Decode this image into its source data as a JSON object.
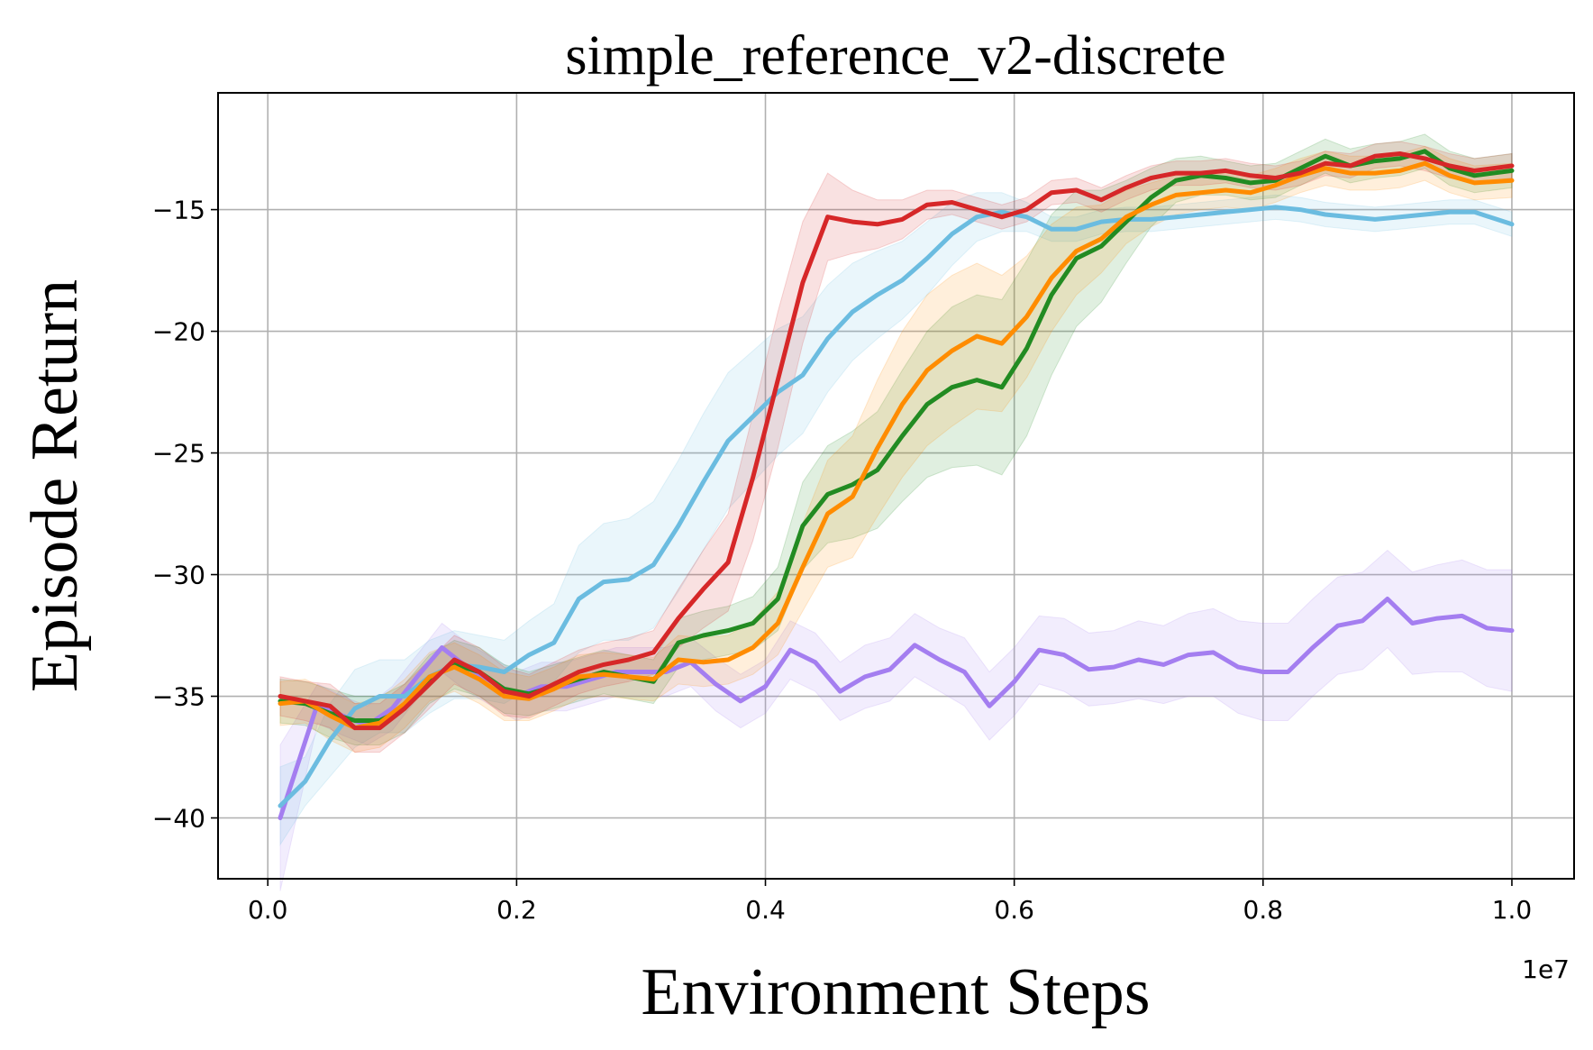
{
  "chart_data": {
    "type": "line",
    "title": "simple_reference_v2-discrete",
    "xlabel": "Environment Steps",
    "ylabel": "Episode Return",
    "x_offset_label": "1e7",
    "xlim": [
      -0.04,
      1.05
    ],
    "ylim": [
      -42.5,
      -10.2
    ],
    "xticks": [
      0.0,
      0.2,
      0.4,
      0.6,
      0.8,
      1.0
    ],
    "xtick_labels": [
      "0.0",
      "0.2",
      "0.4",
      "0.6",
      "0.8",
      "1.0"
    ],
    "yticks": [
      -40,
      -35,
      -30,
      -25,
      -20,
      -15
    ],
    "ytick_labels": [
      "−40",
      "−35",
      "−30",
      "−25",
      "−20",
      "−15"
    ],
    "grid": true,
    "series": [
      {
        "name": "purple",
        "color": "#a47ef0",
        "x": [
          0.01,
          0.04,
          0.06,
          0.08,
          0.1,
          0.12,
          0.14,
          0.16,
          0.18,
          0.2,
          0.22,
          0.24,
          0.26,
          0.28,
          0.3,
          0.32,
          0.34,
          0.36,
          0.38,
          0.4,
          0.42,
          0.44,
          0.46,
          0.48,
          0.5,
          0.52,
          0.54,
          0.56,
          0.58,
          0.6,
          0.62,
          0.64,
          0.66,
          0.68,
          0.7,
          0.72,
          0.74,
          0.76,
          0.78,
          0.8,
          0.82,
          0.84,
          0.86,
          0.88,
          0.9,
          0.92,
          0.94,
          0.96,
          0.98,
          1.0
        ],
        "values": [
          -40,
          -35.3,
          -35.8,
          -36.2,
          -35.5,
          -34.2,
          -33,
          -33.8,
          -34.4,
          -35,
          -34.6,
          -34.6,
          -34.3,
          -34,
          -34,
          -34,
          -33.6,
          -34.5,
          -35.2,
          -34.6,
          -33.1,
          -33.6,
          -34.8,
          -34.2,
          -33.9,
          -32.9,
          -33.5,
          -34,
          -35.4,
          -34.4,
          -33.1,
          -33.3,
          -33.9,
          -33.8,
          -33.5,
          -33.7,
          -33.3,
          -33.2,
          -33.8,
          -34,
          -34,
          -33,
          -32.1,
          -31.9,
          -31,
          -32,
          -31.8,
          -31.7,
          -32.2,
          -32.3
        ],
        "band": [
          3.0,
          0.8,
          0.8,
          0.8,
          0.9,
          0.9,
          1.0,
          1.0,
          1.0,
          1.0,
          1.0,
          1.0,
          1.0,
          1.0,
          1.0,
          1.0,
          1.0,
          1.1,
          1.1,
          1.1,
          1.2,
          1.2,
          1.2,
          1.3,
          1.3,
          1.3,
          1.3,
          1.4,
          1.4,
          1.4,
          1.4,
          1.5,
          1.5,
          1.5,
          1.6,
          1.6,
          1.7,
          1.8,
          1.9,
          2.0,
          2.0,
          2.0,
          2.0,
          2.0,
          2.0,
          2.1,
          2.2,
          2.3,
          2.4,
          2.5
        ]
      },
      {
        "name": "sky",
        "color": "#6bbce0",
        "x": [
          0.01,
          0.03,
          0.05,
          0.07,
          0.09,
          0.11,
          0.13,
          0.15,
          0.17,
          0.19,
          0.21,
          0.23,
          0.25,
          0.27,
          0.29,
          0.31,
          0.33,
          0.35,
          0.37,
          0.39,
          0.41,
          0.43,
          0.45,
          0.47,
          0.49,
          0.51,
          0.53,
          0.55,
          0.57,
          0.59,
          0.61,
          0.63,
          0.65,
          0.67,
          0.69,
          0.71,
          0.73,
          0.75,
          0.77,
          0.79,
          0.81,
          0.83,
          0.85,
          0.87,
          0.89,
          0.91,
          0.93,
          0.95,
          0.97,
          1.0
        ],
        "values": [
          -39.5,
          -38.5,
          -36.8,
          -35.5,
          -35,
          -35,
          -34.2,
          -33.7,
          -33.8,
          -34,
          -33.3,
          -32.8,
          -31,
          -30.3,
          -30.2,
          -29.6,
          -28,
          -26.2,
          -24.5,
          -23.5,
          -22.5,
          -21.8,
          -20.3,
          -19.2,
          -18.5,
          -17.9,
          -17,
          -16,
          -15.3,
          -15.1,
          -15.3,
          -15.8,
          -15.8,
          -15.5,
          -15.4,
          -15.4,
          -15.3,
          -15.2,
          -15.1,
          -15,
          -14.9,
          -15,
          -15.2,
          -15.3,
          -15.4,
          -15.3,
          -15.2,
          -15.1,
          -15.1,
          -15.6
        ],
        "band": [
          1.6,
          1.0,
          1.5,
          1.6,
          1.5,
          1.5,
          1.5,
          1.4,
          1.3,
          1.3,
          1.4,
          1.6,
          2.2,
          2.4,
          2.5,
          2.6,
          2.7,
          2.8,
          2.8,
          2.7,
          2.6,
          2.4,
          2.2,
          2.0,
          1.8,
          1.6,
          1.5,
          1.3,
          1.0,
          0.8,
          0.6,
          0.5,
          0.5,
          0.5,
          0.5,
          0.5,
          0.5,
          0.5,
          0.5,
          0.5,
          0.5,
          0.5,
          0.5,
          0.5,
          0.5,
          0.5,
          0.5,
          0.5,
          0.5,
          0.5
        ]
      },
      {
        "name": "green",
        "color": "#228b22",
        "x": [
          0.01,
          0.03,
          0.05,
          0.07,
          0.09,
          0.11,
          0.13,
          0.15,
          0.17,
          0.19,
          0.21,
          0.23,
          0.25,
          0.27,
          0.29,
          0.31,
          0.33,
          0.35,
          0.37,
          0.39,
          0.41,
          0.43,
          0.45,
          0.47,
          0.49,
          0.51,
          0.53,
          0.55,
          0.57,
          0.59,
          0.61,
          0.63,
          0.65,
          0.67,
          0.69,
          0.71,
          0.73,
          0.75,
          0.77,
          0.79,
          0.81,
          0.83,
          0.85,
          0.87,
          0.89,
          0.91,
          0.93,
          0.95,
          0.97,
          1.0
        ],
        "values": [
          -35.2,
          -35.3,
          -35.7,
          -36,
          -36,
          -35.5,
          -34.3,
          -33.7,
          -34,
          -34.7,
          -34.9,
          -34.6,
          -34.3,
          -34,
          -34.2,
          -34.4,
          -32.8,
          -32.5,
          -32.3,
          -32,
          -31,
          -28,
          -26.7,
          -26.3,
          -25.7,
          -24.3,
          -23,
          -22.3,
          -22,
          -22.3,
          -20.7,
          -18.5,
          -17,
          -16.5,
          -15.5,
          -14.5,
          -13.8,
          -13.6,
          -13.7,
          -13.9,
          -13.8,
          -13.3,
          -12.8,
          -13.2,
          -13,
          -12.9,
          -12.6,
          -13.3,
          -13.6,
          -13.4
        ],
        "band": [
          0.9,
          0.9,
          1.0,
          1.0,
          1.0,
          1.0,
          1.0,
          1.0,
          1.0,
          1.0,
          0.9,
          0.9,
          0.9,
          0.9,
          0.9,
          0.9,
          1.0,
          1.0,
          1.0,
          1.1,
          1.3,
          1.8,
          2.0,
          2.2,
          2.4,
          2.7,
          3.0,
          3.3,
          3.5,
          3.6,
          3.6,
          3.3,
          2.8,
          2.3,
          1.7,
          1.2,
          0.9,
          0.8,
          0.7,
          0.7,
          0.7,
          0.7,
          0.7,
          0.7,
          0.7,
          0.7,
          0.7,
          0.7,
          0.7,
          0.7
        ]
      },
      {
        "name": "orange",
        "color": "#ff8c00",
        "x": [
          0.01,
          0.03,
          0.05,
          0.07,
          0.09,
          0.11,
          0.13,
          0.15,
          0.17,
          0.19,
          0.21,
          0.23,
          0.25,
          0.27,
          0.29,
          0.31,
          0.33,
          0.35,
          0.37,
          0.39,
          0.41,
          0.43,
          0.45,
          0.47,
          0.49,
          0.51,
          0.53,
          0.55,
          0.57,
          0.59,
          0.61,
          0.63,
          0.65,
          0.67,
          0.69,
          0.71,
          0.73,
          0.75,
          0.77,
          0.79,
          0.81,
          0.83,
          0.85,
          0.87,
          0.89,
          0.91,
          0.93,
          0.95,
          0.97,
          1.0
        ],
        "values": [
          -35.3,
          -35.2,
          -35.8,
          -36.3,
          -36.1,
          -35.3,
          -34.2,
          -33.8,
          -34.3,
          -35,
          -35.1,
          -34.7,
          -34.2,
          -34.1,
          -34.2,
          -34.3,
          -33.5,
          -33.6,
          -33.5,
          -33,
          -32,
          -29.7,
          -27.5,
          -26.8,
          -24.8,
          -23,
          -21.6,
          -20.8,
          -20.2,
          -20.5,
          -19.4,
          -17.8,
          -16.7,
          -16.2,
          -15.3,
          -14.8,
          -14.4,
          -14.3,
          -14.2,
          -14.3,
          -14,
          -13.6,
          -13.3,
          -13.5,
          -13.5,
          -13.4,
          -13.1,
          -13.6,
          -13.9,
          -13.8
        ],
        "band": [
          0.9,
          0.9,
          1.0,
          1.0,
          1.0,
          1.0,
          1.0,
          1.0,
          1.0,
          1.0,
          0.9,
          0.9,
          0.9,
          0.9,
          0.9,
          0.9,
          1.0,
          1.0,
          1.0,
          1.1,
          1.3,
          1.8,
          2.2,
          2.5,
          2.8,
          3.0,
          3.1,
          3.1,
          3.0,
          2.8,
          2.5,
          2.2,
          1.8,
          1.4,
          1.1,
          0.9,
          0.8,
          0.7,
          0.7,
          0.7,
          0.7,
          0.7,
          0.7,
          0.7,
          0.7,
          0.7,
          0.7,
          0.7,
          0.7,
          0.7
        ]
      },
      {
        "name": "red",
        "color": "#d62728",
        "x": [
          0.01,
          0.03,
          0.05,
          0.07,
          0.09,
          0.11,
          0.13,
          0.15,
          0.17,
          0.19,
          0.21,
          0.23,
          0.25,
          0.27,
          0.29,
          0.31,
          0.33,
          0.35,
          0.37,
          0.39,
          0.41,
          0.43,
          0.45,
          0.47,
          0.49,
          0.51,
          0.53,
          0.55,
          0.57,
          0.59,
          0.61,
          0.63,
          0.65,
          0.67,
          0.69,
          0.71,
          0.73,
          0.75,
          0.77,
          0.79,
          0.81,
          0.83,
          0.85,
          0.87,
          0.89,
          0.91,
          0.93,
          0.95,
          0.97,
          1.0
        ],
        "values": [
          -35,
          -35.2,
          -35.4,
          -36.3,
          -36.3,
          -35.5,
          -34.5,
          -33.5,
          -34,
          -34.8,
          -35,
          -34.5,
          -34,
          -33.7,
          -33.5,
          -33.2,
          -31.8,
          -30.6,
          -29.5,
          -26,
          -22,
          -18,
          -15.3,
          -15.5,
          -15.6,
          -15.4,
          -14.8,
          -14.7,
          -15,
          -15.3,
          -15,
          -14.3,
          -14.2,
          -14.6,
          -14.1,
          -13.7,
          -13.5,
          -13.5,
          -13.4,
          -13.6,
          -13.7,
          -13.5,
          -13.1,
          -13.2,
          -12.8,
          -12.7,
          -12.9,
          -13.2,
          -13.4,
          -13.2
        ],
        "band": [
          0.8,
          0.8,
          0.9,
          1.0,
          1.0,
          1.0,
          1.0,
          1.0,
          1.0,
          1.0,
          0.9,
          0.9,
          0.9,
          0.9,
          0.9,
          0.9,
          1.2,
          1.6,
          2.0,
          2.6,
          2.8,
          2.5,
          1.8,
          1.3,
          1.0,
          0.8,
          0.6,
          0.5,
          0.5,
          0.5,
          0.5,
          0.5,
          0.5,
          0.5,
          0.5,
          0.5,
          0.5,
          0.5,
          0.5,
          0.5,
          0.5,
          0.5,
          0.5,
          0.5,
          0.5,
          0.5,
          0.5,
          0.5,
          0.5,
          0.5
        ]
      }
    ]
  }
}
